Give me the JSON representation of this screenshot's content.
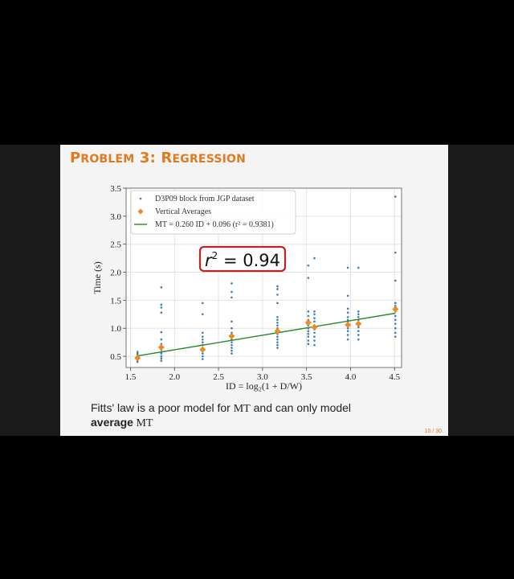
{
  "slide": {
    "title_prefix_big_1": "P",
    "title_prefix_small_1": "ROBLEM",
    "title_num": " 3: ",
    "title_word_big": "R",
    "title_word_small": "EGRESSION",
    "caption_line1_a": "Fitts' law is a poor model for ",
    "caption_line1_mt": "MT",
    "caption_line1_b": " and can only model",
    "caption_line2_strong": "average",
    "caption_line2_mt": " MT",
    "page_number": "10 / 30",
    "r2_badge": "r",
    "r2_badge_sup": "2",
    "r2_badge_value": " = 0.94"
  },
  "colors": {
    "accent": "#e07a1f",
    "scatter": "#3d7fb6",
    "averages": "#f08a1e",
    "fit_line": "#2a8a2a",
    "badge_border": "#c42222"
  },
  "chart_data": {
    "type": "scatter",
    "xlabel": "ID = log₂(1 + D/W)",
    "ylabel": "Time (s)",
    "xlim": [
      1.45,
      4.58
    ],
    "ylim": [
      0.3,
      3.5
    ],
    "xticks": [
      1.5,
      2.0,
      2.5,
      3.0,
      3.5,
      4.0,
      4.5
    ],
    "xtick_labels": [
      "1.5",
      "2.0",
      "2.5",
      "3.0",
      "3.5",
      "4.0",
      "4.5"
    ],
    "yticks": [
      0.5,
      1.0,
      1.5,
      2.0,
      2.5,
      3.0,
      3.5
    ],
    "ytick_labels": [
      "0.5",
      "1.0",
      "1.5",
      "2.0",
      "2.5",
      "3.0",
      "3.5"
    ],
    "grid": true,
    "legend_position": "top-left",
    "legend": [
      {
        "label": "D3P09 block from JGP dataset",
        "kind": "points"
      },
      {
        "label": "Vertical Averages",
        "kind": "diamond"
      },
      {
        "label": "MT = 0.260 ID + 0.096 (r² = 0.9381)",
        "kind": "line"
      }
    ],
    "series": [
      {
        "name": "D3P09 block from JGP dataset",
        "kind": "scatter",
        "points": [
          [
            1.58,
            0.4
          ],
          [
            1.58,
            0.43
          ],
          [
            1.58,
            0.45
          ],
          [
            1.58,
            0.48
          ],
          [
            1.58,
            0.5
          ],
          [
            1.58,
            0.52
          ],
          [
            1.58,
            0.55
          ],
          [
            1.58,
            0.58
          ],
          [
            1.85,
            0.42
          ],
          [
            1.85,
            0.46
          ],
          [
            1.85,
            0.5
          ],
          [
            1.85,
            0.55
          ],
          [
            1.85,
            0.58
          ],
          [
            1.85,
            0.62
          ],
          [
            1.85,
            0.68
          ],
          [
            1.85,
            0.72
          ],
          [
            1.85,
            0.8
          ],
          [
            1.85,
            0.93
          ],
          [
            1.85,
            1.28
          ],
          [
            1.85,
            1.37
          ],
          [
            1.85,
            1.42
          ],
          [
            1.85,
            1.73
          ],
          [
            2.32,
            0.45
          ],
          [
            2.32,
            0.5
          ],
          [
            2.32,
            0.55
          ],
          [
            2.32,
            0.6
          ],
          [
            2.32,
            0.65
          ],
          [
            2.32,
            0.7
          ],
          [
            2.32,
            0.75
          ],
          [
            2.32,
            0.8
          ],
          [
            2.32,
            0.85
          ],
          [
            2.32,
            0.92
          ],
          [
            2.32,
            1.25
          ],
          [
            2.32,
            1.45
          ],
          [
            2.65,
            0.55
          ],
          [
            2.65,
            0.6
          ],
          [
            2.65,
            0.65
          ],
          [
            2.65,
            0.7
          ],
          [
            2.65,
            0.75
          ],
          [
            2.65,
            0.8
          ],
          [
            2.65,
            0.85
          ],
          [
            2.65,
            0.92
          ],
          [
            2.65,
            1.0
          ],
          [
            2.65,
            1.12
          ],
          [
            2.65,
            1.55
          ],
          [
            2.65,
            1.65
          ],
          [
            2.65,
            1.8
          ],
          [
            3.17,
            0.65
          ],
          [
            3.17,
            0.7
          ],
          [
            3.17,
            0.75
          ],
          [
            3.17,
            0.8
          ],
          [
            3.17,
            0.85
          ],
          [
            3.17,
            0.9
          ],
          [
            3.17,
            0.95
          ],
          [
            3.17,
            1.0
          ],
          [
            3.17,
            1.05
          ],
          [
            3.17,
            1.1
          ],
          [
            3.17,
            1.15
          ],
          [
            3.17,
            1.2
          ],
          [
            3.17,
            1.45
          ],
          [
            3.17,
            1.6
          ],
          [
            3.17,
            1.7
          ],
          [
            3.17,
            1.75
          ],
          [
            3.52,
            0.72
          ],
          [
            3.52,
            0.78
          ],
          [
            3.52,
            0.85
          ],
          [
            3.52,
            0.9
          ],
          [
            3.52,
            0.95
          ],
          [
            3.52,
            1.0
          ],
          [
            3.52,
            1.05
          ],
          [
            3.52,
            1.1
          ],
          [
            3.52,
            1.15
          ],
          [
            3.52,
            1.22
          ],
          [
            3.52,
            1.3
          ],
          [
            3.52,
            1.9
          ],
          [
            3.52,
            2.12
          ],
          [
            3.59,
            0.7
          ],
          [
            3.59,
            0.78
          ],
          [
            3.59,
            0.85
          ],
          [
            3.59,
            0.92
          ],
          [
            3.59,
            0.98
          ],
          [
            3.59,
            1.05
          ],
          [
            3.59,
            1.12
          ],
          [
            3.59,
            1.18
          ],
          [
            3.59,
            1.25
          ],
          [
            3.59,
            1.3
          ],
          [
            3.59,
            2.25
          ],
          [
            3.97,
            0.8
          ],
          [
            3.97,
            0.88
          ],
          [
            3.97,
            0.95
          ],
          [
            3.97,
            1.0
          ],
          [
            3.97,
            1.05
          ],
          [
            3.97,
            1.1
          ],
          [
            3.97,
            1.15
          ],
          [
            3.97,
            1.2
          ],
          [
            3.97,
            1.28
          ],
          [
            3.97,
            1.35
          ],
          [
            3.97,
            1.58
          ],
          [
            3.97,
            2.08
          ],
          [
            4.09,
            0.8
          ],
          [
            4.09,
            0.88
          ],
          [
            4.09,
            0.95
          ],
          [
            4.09,
            1.02
          ],
          [
            4.09,
            1.08
          ],
          [
            4.09,
            1.15
          ],
          [
            4.09,
            1.2
          ],
          [
            4.09,
            1.25
          ],
          [
            4.09,
            1.3
          ],
          [
            4.09,
            2.08
          ],
          [
            4.51,
            0.85
          ],
          [
            4.51,
            0.92
          ],
          [
            4.51,
            1.0
          ],
          [
            4.51,
            1.08
          ],
          [
            4.51,
            1.15
          ],
          [
            4.51,
            1.22
          ],
          [
            4.51,
            1.3
          ],
          [
            4.51,
            1.35
          ],
          [
            4.51,
            1.4
          ],
          [
            4.51,
            1.45
          ],
          [
            4.51,
            1.85
          ],
          [
            4.51,
            2.35
          ],
          [
            4.51,
            3.35
          ]
        ]
      },
      {
        "name": "Vertical Averages",
        "kind": "diamond",
        "points": [
          [
            1.58,
            0.47
          ],
          [
            1.85,
            0.66
          ],
          [
            2.32,
            0.62
          ],
          [
            2.65,
            0.86
          ],
          [
            3.17,
            0.95
          ],
          [
            3.52,
            1.1
          ],
          [
            3.59,
            1.02
          ],
          [
            3.97,
            1.06
          ],
          [
            4.09,
            1.08
          ],
          [
            4.51,
            1.34
          ]
        ]
      },
      {
        "name": "MT = 0.260 ID + 0.096 (r² = 0.9381)",
        "kind": "line",
        "slope": 0.26,
        "intercept": 0.096,
        "x_range": [
          1.58,
          4.51
        ]
      }
    ]
  }
}
